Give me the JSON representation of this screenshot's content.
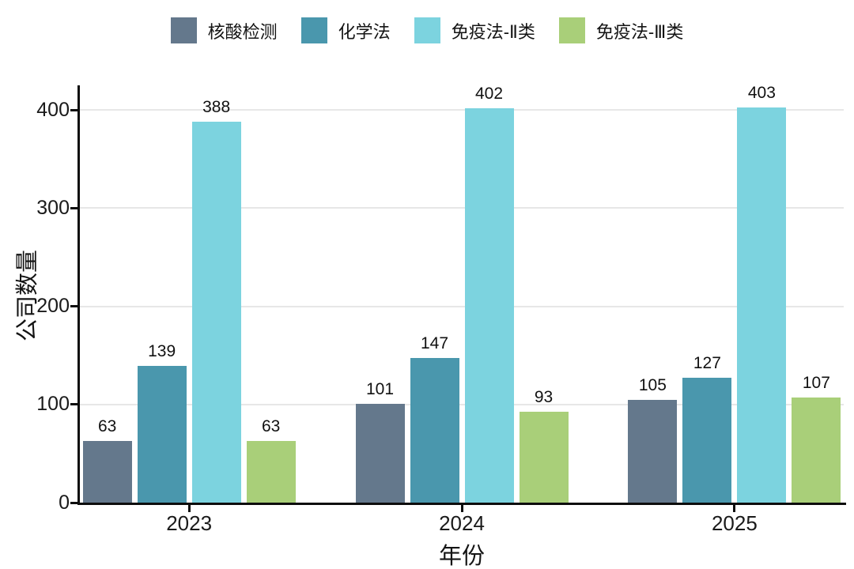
{
  "chart_data": {
    "type": "bar",
    "title": "",
    "xlabel": "年份",
    "ylabel": "公司数量",
    "categories": [
      "2023",
      "2024",
      "2025"
    ],
    "series": [
      {
        "name": "核酸检测",
        "color": "#64788c",
        "values": [
          63,
          101,
          105
        ]
      },
      {
        "name": "化学法",
        "color": "#4a97ad",
        "values": [
          139,
          147,
          127
        ]
      },
      {
        "name": "免疫法-Ⅱ类",
        "color": "#7cd3df",
        "values": [
          388,
          402,
          403
        ]
      },
      {
        "name": "免疫法-Ⅲ类",
        "color": "#a9cf79",
        "values": [
          63,
          93,
          107
        ]
      }
    ],
    "yticks": [
      0,
      100,
      200,
      300,
      400
    ],
    "ylim": [
      0,
      422
    ],
    "grid": "horizontal-major-only",
    "legend_position": "top-center",
    "value_labels": "above-bars",
    "colors": {
      "axis": "#0d0d0d",
      "gridline": "#e7e7e7",
      "text": "#1a1a1a",
      "background": "#ffffff"
    }
  }
}
